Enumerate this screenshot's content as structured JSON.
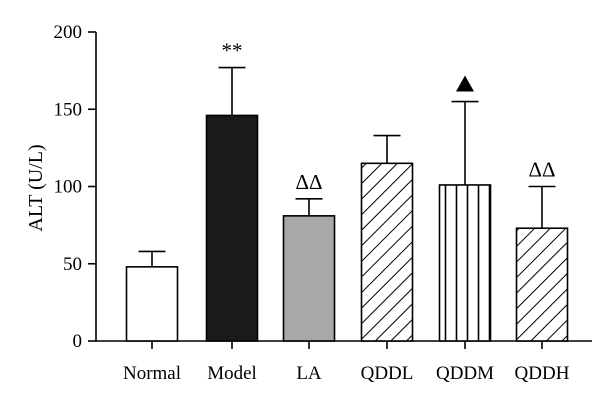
{
  "chart_data": {
    "type": "bar",
    "title": "",
    "xlabel": "",
    "ylabel": "ALT (U/L)",
    "ylim": [
      0,
      200
    ],
    "yticks": [
      0,
      50,
      100,
      150,
      200
    ],
    "categories": [
      "Normal",
      "Model",
      "LA",
      "QDDL",
      "QDDM",
      "QDDH"
    ],
    "values": [
      48,
      146,
      81,
      115,
      101,
      73
    ],
    "errors": [
      10,
      31,
      11,
      18,
      54,
      27
    ],
    "annotations": [
      "",
      "**",
      "ΔΔ",
      "",
      "▲",
      "ΔΔ"
    ],
    "fills": [
      "white",
      "black",
      "gray",
      "diagonal-hatch",
      "vertical-hatch",
      "diagonal-hatch"
    ],
    "colors": {
      "black": "#1a1a1a",
      "gray": "#a8a8a8",
      "white": "#ffffff",
      "stroke": "#000000"
    },
    "grid": false
  }
}
